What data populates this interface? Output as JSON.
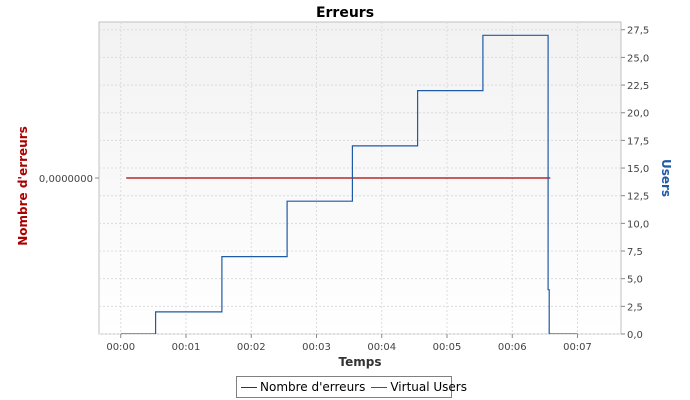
{
  "colors": {
    "errors": "#aa0000",
    "users": "#1f5aa6",
    "plot_bg_top": "#f2f2f2",
    "plot_bg_bottom": "#ffffff",
    "grid": "#dcdcdc",
    "axis_text": "#444444"
  },
  "legend_items": [
    {
      "label": "Nombre d'erreurs",
      "color": "#aa0000"
    },
    {
      "label": "Virtual Users",
      "color": "#1f5aa6"
    }
  ],
  "chart_data": {
    "type": "line",
    "title": "Erreurs",
    "xlabel": "Temps",
    "ylabel_left": "Nombre d'erreurs",
    "ylabel_right": "Users",
    "x_ticks": [
      "00:00",
      "00:01",
      "00:02",
      "00:03",
      "00:04",
      "00:05",
      "00:06",
      "00:07"
    ],
    "xlim_seconds": [
      -20,
      460
    ],
    "left_axis": {
      "ticks": [
        "0,0000000"
      ],
      "value": 0
    },
    "right_axis": {
      "ylim": [
        0,
        28.2
      ],
      "ticks": [
        "0,0",
        "2,5",
        "5,0",
        "7,5",
        "10,0",
        "12,5",
        "15,0",
        "17,5",
        "20,0",
        "22,5",
        "25,0",
        "27,5"
      ]
    },
    "grid": true,
    "legend_placement": "bottom",
    "series": [
      {
        "name": "Nombre d'erreurs",
        "axis": "left",
        "x_seconds": [
          5,
          395
        ],
        "values": [
          0,
          0
        ]
      },
      {
        "name": "Virtual Users",
        "axis": "right",
        "x_seconds": [
          0,
          32,
          32,
          93,
          93,
          153,
          153,
          213,
          213,
          273,
          273,
          333,
          333,
          393,
          393,
          394,
          394,
          420
        ],
        "values": [
          0,
          0,
          2,
          2,
          7,
          7,
          12,
          12,
          17,
          17,
          22,
          22,
          27,
          27,
          4,
          4,
          0,
          0
        ]
      }
    ]
  }
}
